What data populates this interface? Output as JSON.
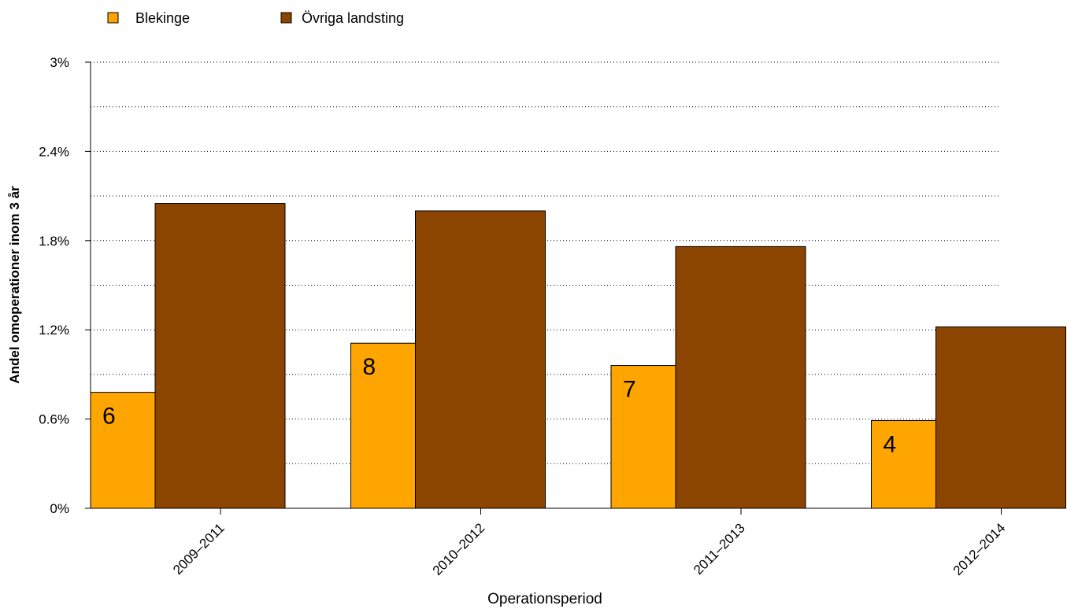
{
  "chart_data": {
    "type": "bar",
    "categories": [
      "2009–2011",
      "2010–2012",
      "2011–2013",
      "2012–2014"
    ],
    "series": [
      {
        "name": "Blekinge",
        "color": "#FFA500",
        "values": [
          0.78,
          1.11,
          0.96,
          0.59
        ],
        "counts": [
          "6",
          "8",
          "7",
          "4"
        ]
      },
      {
        "name": "Övriga landsting",
        "color": "#8B4500",
        "values": [
          2.05,
          2.0,
          1.76,
          1.22
        ]
      }
    ],
    "xlabel": "Operationsperiod",
    "ylabel": "Andel omoperationer inom 3 år",
    "ylim": [
      0,
      3
    ],
    "yticks": [
      0,
      0.6,
      1.2,
      1.8,
      2.4,
      3.0
    ],
    "ytick_labels": [
      "0%",
      "0.6%",
      "1.2%",
      "1.8%",
      "2.4%",
      "3%"
    ],
    "grid": "horizontal dotted",
    "legend_position": "top-left"
  }
}
